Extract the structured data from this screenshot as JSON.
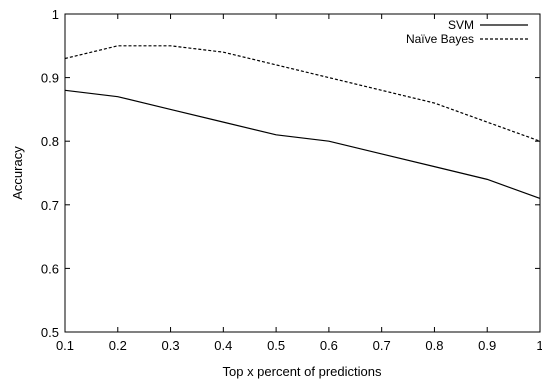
{
  "chart_data": {
    "type": "line",
    "title": "",
    "xlabel": "Top x percent of predictions",
    "ylabel": "Accuracy",
    "xlim": [
      0.1,
      1
    ],
    "ylim": [
      0.5,
      1
    ],
    "x_ticks": [
      "0.1",
      "0.2",
      "0.3",
      "0.4",
      "0.5",
      "0.6",
      "0.7",
      "0.8",
      "0.9",
      "1"
    ],
    "y_ticks": [
      "0.5",
      "0.6",
      "0.7",
      "0.8",
      "0.9",
      "1"
    ],
    "grid": false,
    "legend_position": "top-right",
    "series": [
      {
        "name": "SVM",
        "style": "solid",
        "x": [
          0.1,
          0.2,
          0.3,
          0.4,
          0.5,
          0.6,
          0.7,
          0.8,
          0.9,
          1.0
        ],
        "values": [
          0.88,
          0.87,
          0.85,
          0.83,
          0.81,
          0.8,
          0.78,
          0.76,
          0.74,
          0.71
        ]
      },
      {
        "name": "Naïve Bayes",
        "style": "dashed",
        "x": [
          0.1,
          0.2,
          0.3,
          0.4,
          0.5,
          0.6,
          0.7,
          0.8,
          0.9,
          1.0
        ],
        "values": [
          0.93,
          0.95,
          0.95,
          0.94,
          0.92,
          0.9,
          0.88,
          0.86,
          0.83,
          0.8
        ]
      }
    ]
  }
}
